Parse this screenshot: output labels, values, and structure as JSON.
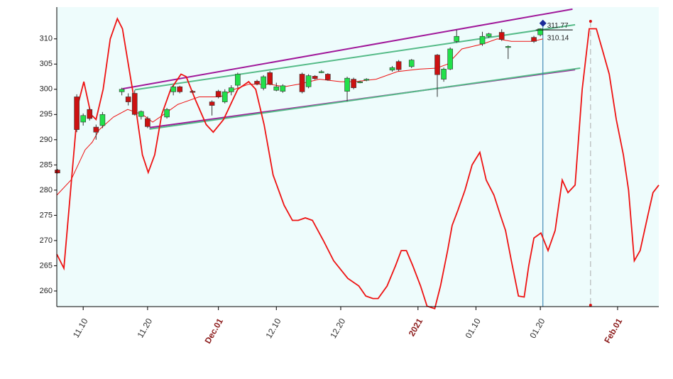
{
  "chart_data": {
    "type": "candlestick",
    "xlim": [
      5.9,
      99.4
    ],
    "ylim": [
      256.9,
      316.3
    ],
    "yticks": [
      260,
      265,
      270,
      275,
      280,
      285,
      290,
      295,
      300,
      305,
      310
    ],
    "xticks": [
      {
        "value": 10,
        "label": "11.10"
      },
      {
        "value": 20,
        "label": "11.20"
      },
      {
        "value": 31,
        "label": "Dec.01"
      },
      {
        "value": 40,
        "label": "12.10"
      },
      {
        "value": 50,
        "label": "12.20"
      },
      {
        "value": 62,
        "label": "2021"
      },
      {
        "value": 71,
        "label": "01.10"
      },
      {
        "value": 81,
        "label": "01.20"
      },
      {
        "value": 93,
        "label": "Feb.01"
      }
    ],
    "up_color": "#22e04a",
    "down_color": "#cc1111",
    "candles": {
      "x": [
        6,
        9,
        10,
        11,
        12,
        13,
        16,
        17,
        18,
        19,
        20,
        23,
        24,
        25,
        27,
        30,
        31,
        32,
        33,
        34,
        37,
        38,
        39,
        40,
        41,
        44,
        45,
        46,
        47,
        48,
        51,
        52,
        53,
        54,
        58,
        59,
        61,
        65,
        66,
        67,
        68,
        72,
        73,
        75,
        76,
        80,
        81
      ],
      "open": [
        284,
        298.5,
        293.5,
        296,
        292.5,
        292.8,
        299.5,
        298.5,
        299.2,
        294.6,
        294.2,
        294.5,
        299.5,
        300.5,
        299.6,
        297.5,
        299.6,
        297.5,
        299.5,
        300.8,
        301.6,
        300.2,
        303.3,
        299.8,
        299.6,
        303,
        300.5,
        302.6,
        303.4,
        303,
        299.6,
        302,
        301.4,
        301.9,
        303.8,
        305.5,
        304.5,
        306.8,
        302,
        304,
        309.5,
        309,
        310.5,
        311.3,
        308.4,
        310.3,
        310.8
      ],
      "high": [
        284.2,
        299,
        295.2,
        296.3,
        293,
        295.5,
        300.3,
        299.2,
        299.8,
        295.8,
        294.6,
        296.3,
        300.8,
        300.7,
        299.8,
        297.8,
        299.9,
        300,
        300.8,
        303.3,
        301.9,
        302.8,
        303.6,
        301.3,
        301,
        303.3,
        303,
        302.8,
        303.8,
        303.2,
        302.5,
        302.3,
        301.7,
        302.2,
        304.6,
        305.8,
        306,
        307,
        304.3,
        308.3,
        311.8,
        311.4,
        311.2,
        311.9,
        308.7,
        310.6,
        312.1
      ],
      "low": [
        283.3,
        291.5,
        292.8,
        293.8,
        290,
        292.3,
        298.8,
        296.8,
        294.8,
        294,
        292.3,
        294.2,
        298.8,
        299.2,
        299.3,
        294.8,
        298.2,
        297.2,
        298.8,
        300.3,
        300.8,
        299.8,
        300.8,
        299.6,
        299.3,
        299.2,
        300.2,
        301.9,
        303.2,
        301.7,
        297.6,
        300,
        301.2,
        301.6,
        303.5,
        303.6,
        304.2,
        298.5,
        301.5,
        303.8,
        309.2,
        308.6,
        310.2,
        309.6,
        306,
        309.2,
        310.5
      ],
      "close": [
        283.4,
        292,
        294.8,
        294.2,
        291.5,
        295,
        300,
        297.5,
        295,
        295.6,
        292.6,
        296,
        300.5,
        299.5,
        299.4,
        296.8,
        298.5,
        299.5,
        300.3,
        303,
        301.1,
        302.5,
        301,
        300.5,
        300.7,
        299.5,
        302.7,
        302.1,
        303.5,
        301.9,
        302.2,
        300.3,
        301.5,
        302,
        304.3,
        303.9,
        305.8,
        302.9,
        304,
        308,
        310.5,
        310.5,
        311,
        309.9,
        308.5,
        309.5,
        312
      ]
    },
    "lines": [
      {
        "color": "#ee1111",
        "width": 1.8,
        "x": [
          5.9,
          7.0,
          9.2,
          10.1,
          11.2,
          12.0,
          13.1,
          14.2,
          15.3,
          16.1,
          17.0,
          18.3,
          19.2,
          20.1,
          21.1,
          22.2,
          23.6,
          25.2,
          26.0,
          27.4,
          29.1,
          30.2,
          31.8,
          34.0,
          35.7,
          36.8,
          38.1,
          39.5,
          41.2,
          42.5,
          43.4,
          44.5,
          45.6,
          47.3,
          48.9,
          51.1,
          52.8,
          53.9,
          55.0,
          55.8,
          57.2,
          58.5,
          59.4,
          60.2,
          61.2,
          62.4,
          63.4,
          64.6,
          65.5,
          66.6,
          67.3,
          68.2,
          69.3,
          70.4,
          71.6,
          72.6,
          73.8,
          74.8,
          75.6,
          76.5,
          77.6,
          78.5,
          79.2,
          80.0,
          81.1,
          82.2,
          83.3,
          84.4,
          85.3,
          86.4,
          87.5,
          88.6,
          89.7,
          90.6,
          91.7,
          92.8,
          93.9,
          94.7,
          95.6,
          96.5,
          97.7,
          98.5,
          99.4
        ],
        "y": [
          267.3,
          264.5,
          297,
          301.5,
          295,
          294,
          300,
          310,
          314,
          312,
          305,
          295,
          287,
          283.5,
          287,
          295,
          300,
          303,
          302.5,
          298,
          293,
          291.5,
          294,
          300,
          301.5,
          300,
          293,
          283,
          277,
          274,
          274,
          274.5,
          274,
          270,
          266,
          262.5,
          261,
          259,
          258.5,
          258.5,
          261,
          265,
          268,
          268,
          265,
          261,
          257,
          256.5,
          261,
          268,
          273,
          276,
          280,
          285,
          287.5,
          282,
          279,
          275,
          272,
          266,
          259,
          258.8,
          265,
          270.5,
          271.5,
          268,
          272,
          282,
          279.5,
          281,
          300,
          312,
          312,
          308,
          303,
          294,
          287,
          280,
          266,
          268,
          275,
          279.5,
          281
        ]
      },
      {
        "color": "#ee1111",
        "width": 1,
        "x": [
          5.9,
          8.1,
          9.2,
          10.3,
          11.4,
          12.5,
          14.7,
          16.9,
          19.2,
          20.8,
          22.5,
          24.7,
          28.0,
          31.3,
          33.5,
          35.7,
          39.0,
          41.2,
          43.4,
          46.7,
          50.0,
          52.2,
          55.5,
          58.8,
          62.2,
          64.9,
          66.6,
          68.8,
          72.1,
          74.3,
          76.5,
          79.8,
          81.4
        ],
        "y": [
          279,
          282,
          285,
          288,
          289.5,
          292,
          294.5,
          296,
          295,
          293.5,
          295,
          297,
          298.5,
          298.5,
          300,
          301,
          301,
          300.5,
          301,
          302,
          301.5,
          301.5,
          302,
          303.5,
          304,
          304.2,
          305,
          308,
          309,
          310,
          309.5,
          309.5,
          310
        ]
      }
    ],
    "trendlines": [
      {
        "color": "#a0189a",
        "x": [
          16.1,
          86.0
        ],
        "y": [
          300.1,
          315.9
        ]
      },
      {
        "color": "#a0189a",
        "x": [
          20.3,
          86.4
        ],
        "y": [
          292.4,
          303.9
        ]
      },
      {
        "color": "#55bb88",
        "x": [
          18.0,
          86.4
        ],
        "y": [
          299.9,
          312.8
        ]
      },
      {
        "color": "#55bb88",
        "x": [
          20.3,
          87.2
        ],
        "y": [
          292.1,
          304.2
        ]
      }
    ],
    "price_marks": [
      311.77,
      310.14
    ],
    "cursor_x": 81.4,
    "forecast_x": 88.8,
    "marker": {
      "x": 81.4,
      "y": 313.1
    }
  }
}
